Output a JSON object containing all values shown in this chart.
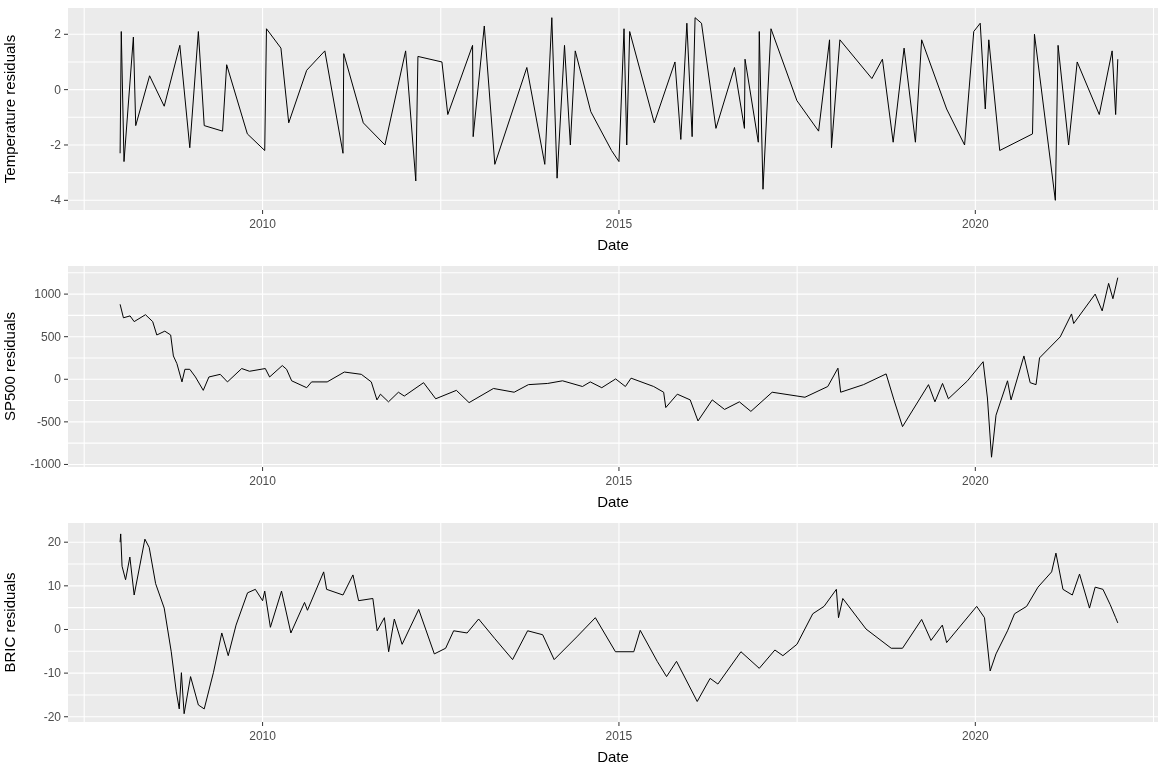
{
  "chart_data": [
    {
      "type": "line",
      "xlabel": "Date",
      "ylabel": "Temperature residuals",
      "color": "#000000",
      "grid": true,
      "xlim": [
        "2007-04-10",
        "2022-07-25"
      ],
      "xticks": [
        {
          "value": "2007-07-02",
          "label": null
        },
        {
          "value": "2010-01-01",
          "label": "2010"
        },
        {
          "value": "2012-07-02",
          "label": null
        },
        {
          "value": "2015-01-01",
          "label": "2015"
        },
        {
          "value": "2017-07-02",
          "label": null
        },
        {
          "value": "2020-01-01",
          "label": "2020"
        },
        {
          "value": "2022-07-02",
          "label": null
        }
      ],
      "ylim": [
        -4.35,
        2.95
      ],
      "yticks": [
        -4,
        {
          "value": -3,
          "label": null
        },
        -2,
        {
          "value": -1,
          "label": null
        },
        0,
        {
          "value": 1,
          "label": null
        },
        2
      ],
      "x": [
        "2008-01-02",
        "2008-01-08",
        "2008-01-22",
        "2008-03-10",
        "2008-03-22",
        "2008-06-01",
        "2008-08-15",
        "2008-11-03",
        "2008-12-24",
        "2009-02-06",
        "2009-03-08",
        "2009-06-10",
        "2009-07-01",
        "2009-10-15",
        "2010-01-12",
        "2010-01-21",
        "2010-04-05",
        "2010-05-15",
        "2010-08-15",
        "2010-11-16",
        "2011-02-17",
        "2011-02-21",
        "2011-06-01",
        "2011-09-20",
        "2012-01-04",
        "2012-02-25",
        "2012-03-07",
        "2012-07-08",
        "2012-08-07",
        "2012-12-12",
        "2012-12-15",
        "2013-02-10",
        "2013-04-05",
        "2013-09-16",
        "2013-12-17",
        "2014-01-22",
        "2014-02-18",
        "2014-03-28",
        "2014-04-27",
        "2014-05-22",
        "2014-08-10",
        "2014-11-24",
        "2015-01-01",
        "2015-01-27",
        "2015-02-10",
        "2015-02-25",
        "2015-07-01",
        "2015-10-15",
        "2015-11-14",
        "2015-12-15",
        "2016-01-11",
        "2016-01-26",
        "2016-02-28",
        "2016-05-12",
        "2016-08-15",
        "2016-10-05",
        "2016-10-08",
        "2016-12-15",
        "2016-12-20",
        "2017-01-08",
        "2017-02-18",
        "2017-07-01",
        "2017-10-20",
        "2017-12-15",
        "2017-12-25",
        "2018-02-06",
        "2018-07-20",
        "2018-09-12",
        "2018-11-06",
        "2019-01-01",
        "2019-02-28",
        "2019-04-01",
        "2019-08-07",
        "2019-11-07",
        "2019-12-24",
        "2020-01-26",
        "2020-02-21",
        "2020-03-10",
        "2020-05-05",
        "2020-10-20",
        "2020-10-30",
        "2021-02-14",
        "2021-02-28",
        "2021-04-23",
        "2021-06-06",
        "2021-09-27",
        "2021-12-02",
        "2021-12-20",
        "2021-12-31"
      ],
      "values": [
        -2.3,
        2.1,
        -2.6,
        1.9,
        -1.3,
        0.5,
        -0.6,
        1.6,
        -2.1,
        2.1,
        -1.3,
        -1.5,
        0.9,
        -1.6,
        -2.2,
        2.2,
        1.5,
        -1.2,
        0.7,
        1.4,
        -2.3,
        1.3,
        -1.2,
        -2.0,
        1.4,
        -3.3,
        1.2,
        1.0,
        -0.9,
        1.6,
        -1.7,
        2.3,
        -2.7,
        0.8,
        -2.7,
        2.6,
        -3.2,
        1.6,
        -2.0,
        1.4,
        -0.8,
        -2.2,
        -2.6,
        2.2,
        -2.0,
        2.1,
        -1.2,
        1.0,
        -1.8,
        2.4,
        -1.7,
        2.6,
        2.4,
        -1.4,
        0.8,
        -1.4,
        1.1,
        -1.9,
        2.1,
        -3.6,
        2.2,
        -0.4,
        -1.5,
        1.8,
        -2.1,
        1.8,
        0.4,
        1.1,
        -1.9,
        1.5,
        -1.9,
        1.8,
        -0.7,
        -2.0,
        2.1,
        2.4,
        -0.7,
        1.8,
        -2.2,
        -1.6,
        2.0,
        -4.0,
        1.6,
        -2.0,
        1.0,
        -0.9,
        1.4,
        -0.9,
        1.1
      ]
    },
    {
      "type": "line",
      "xlabel": "Date",
      "ylabel": "SP500 residuals",
      "color": "#000000",
      "grid": true,
      "xlim": [
        "2007-04-10",
        "2022-07-25"
      ],
      "xticks": [
        {
          "value": "2007-07-02",
          "label": null
        },
        {
          "value": "2010-01-01",
          "label": "2010"
        },
        {
          "value": "2012-07-02",
          "label": null
        },
        {
          "value": "2015-01-01",
          "label": "2015"
        },
        {
          "value": "2017-07-02",
          "label": null
        },
        {
          "value": "2020-01-01",
          "label": "2020"
        },
        {
          "value": "2022-07-02",
          "label": null
        }
      ],
      "ylim": [
        -1030,
        1330
      ],
      "yticks": [
        -1000,
        {
          "value": -750,
          "label": null
        },
        -500,
        {
          "value": -250,
          "label": null
        },
        0,
        {
          "value": 250,
          "label": null
        },
        500,
        {
          "value": 750,
          "label": null
        },
        1000,
        {
          "value": 1250,
          "label": null
        }
      ],
      "x": [
        "2008-01-02",
        "2008-01-19",
        "2008-02-22",
        "2008-03-14",
        "2008-05-11",
        "2008-06-17",
        "2008-07-08",
        "2008-08-18",
        "2008-09-17",
        "2008-10-01",
        "2008-10-19",
        "2008-11-14",
        "2008-11-29",
        "2008-12-24",
        "2009-01-22",
        "2009-03-03",
        "2009-04-01",
        "2009-05-29",
        "2009-07-05",
        "2009-09-16",
        "2009-10-26",
        "2010-01-15",
        "2010-02-06",
        "2010-04-12",
        "2010-05-04",
        "2010-05-30",
        "2010-08-15",
        "2010-09-09",
        "2010-11-28",
        "2011-02-24",
        "2011-05-22",
        "2011-07-12",
        "2011-08-10",
        "2011-08-28",
        "2011-10-08",
        "2011-11-28",
        "2011-12-28",
        "2012-04-05",
        "2012-06-06",
        "2012-09-20",
        "2012-11-24",
        "2013-03-29",
        "2013-07-13",
        "2013-09-24",
        "2014-01-01",
        "2014-03-18",
        "2014-06-28",
        "2014-08-07",
        "2014-10-05",
        "2014-12-15",
        "2015-02-03",
        "2015-03-04",
        "2015-06-28",
        "2015-08-18",
        "2015-08-29",
        "2015-10-27",
        "2016-01-01",
        "2016-02-10",
        "2016-04-23",
        "2016-06-25",
        "2016-09-09",
        "2016-11-07",
        "2017-02-24",
        "2017-08-11",
        "2017-12-06",
        "2018-01-27",
        "2018-02-10",
        "2018-06-07",
        "2018-10-01",
        "2018-11-10",
        "2018-12-24",
        "2019-05-06",
        "2019-06-08",
        "2019-07-17",
        "2019-08-16",
        "2019-11-22",
        "2020-02-10",
        "2020-03-03",
        "2020-03-24",
        "2020-04-16",
        "2020-06-14",
        "2020-07-02",
        "2020-09-06",
        "2020-10-08",
        "2020-11-07",
        "2020-11-25",
        "2021-03-11",
        "2021-05-08",
        "2021-05-19",
        "2021-09-06",
        "2021-10-12",
        "2021-11-14",
        "2021-12-06",
        "2021-12-31"
      ],
      "values": [
        880,
        722,
        744,
        677,
        758,
        677,
        520,
        565,
        520,
        274,
        184,
        -31,
        117,
        117,
        27,
        -130,
        27,
        58,
        -31,
        126,
        94,
        126,
        27,
        161,
        117,
        -18,
        -99,
        -31,
        -31,
        85,
        58,
        -31,
        -242,
        -175,
        -265,
        -152,
        -197,
        -40,
        -229,
        -130,
        -274,
        -108,
        -152,
        -63,
        -49,
        -18,
        -85,
        -31,
        -99,
        4,
        -85,
        13,
        -85,
        -152,
        -332,
        -175,
        -242,
        -489,
        -242,
        -354,
        -265,
        -377,
        -152,
        -211,
        -85,
        130,
        -152,
        -63,
        63,
        -242,
        -556,
        -63,
        -265,
        -49,
        -229,
        -18,
        206,
        -220,
        -915,
        -422,
        -18,
        -242,
        274,
        -40,
        -63,
        251,
        498,
        767,
        655,
        1000,
        803,
        1126,
        946,
        1193
      ]
    },
    {
      "type": "line",
      "xlabel": "Date",
      "ylabel": "BRIC residuals",
      "color": "#000000",
      "grid": true,
      "xlim": [
        "2007-04-10",
        "2022-07-25"
      ],
      "xticks": [
        {
          "value": "2007-07-02",
          "label": null
        },
        {
          "value": "2010-01-01",
          "label": "2010"
        },
        {
          "value": "2012-07-02",
          "label": null
        },
        {
          "value": "2015-01-01",
          "label": "2015"
        },
        {
          "value": "2017-07-02",
          "label": null
        },
        {
          "value": "2020-01-01",
          "label": "2020"
        },
        {
          "value": "2022-07-02",
          "label": null
        }
      ],
      "ylim": [
        -21.2,
        24.4
      ],
      "yticks": [
        -20,
        {
          "value": -15,
          "label": null
        },
        -10,
        {
          "value": -5,
          "label": null
        },
        0,
        {
          "value": 5,
          "label": null
        },
        10,
        {
          "value": 15,
          "label": null
        },
        20
      ],
      "x": [
        "2008-01-02",
        "2008-01-05",
        "2008-01-12",
        "2008-01-30",
        "2008-02-21",
        "2008-03-14",
        "2008-05-08",
        "2008-05-30",
        "2008-07-02",
        "2008-08-15",
        "2008-09-20",
        "2008-10-16",
        "2008-10-31",
        "2008-11-11",
        "2008-11-25",
        "2008-12-28",
        "2009-02-06",
        "2009-03-08",
        "2009-04-24",
        "2009-06-06",
        "2009-07-09",
        "2009-08-18",
        "2009-10-16",
        "2009-11-25",
        "2010-01-01",
        "2010-01-12",
        "2010-02-10",
        "2010-04-08",
        "2010-05-26",
        "2010-08-04",
        "2010-08-19",
        "2010-11-10",
        "2010-11-25",
        "2011-02-17",
        "2011-04-09",
        "2011-05-08",
        "2011-07-20",
        "2011-08-11",
        "2011-09-17",
        "2011-10-09",
        "2011-11-07",
        "2011-12-17",
        "2012-03-11",
        "2012-05-30",
        "2012-07-27",
        "2012-09-06",
        "2012-11-14",
        "2013-01-12",
        "2013-04-05",
        "2013-07-05",
        "2013-09-20",
        "2013-12-06",
        "2014-02-03",
        "2014-05-30",
        "2014-09-02",
        "2014-12-14",
        "2015-03-18",
        "2015-04-20",
        "2015-07-16",
        "2015-09-02",
        "2015-10-23",
        "2016-02-06",
        "2016-04-12",
        "2016-05-22",
        "2016-09-17",
        "2016-12-20",
        "2017-03-10",
        "2017-04-20",
        "2017-07-01",
        "2017-09-20",
        "2017-11-17",
        "2018-01-19",
        "2018-01-30",
        "2018-02-21",
        "2018-06-20",
        "2018-10-27",
        "2018-12-24",
        "2019-04-01",
        "2019-05-19",
        "2019-07-16",
        "2019-08-07",
        "2020-01-08",
        "2020-02-17",
        "2020-03-17",
        "2020-04-16",
        "2020-06-14",
        "2020-07-20",
        "2020-09-20",
        "2020-11-17",
        "2021-01-26",
        "2021-02-17",
        "2021-03-25",
        "2021-05-12",
        "2021-06-18",
        "2021-08-08",
        "2021-09-06",
        "2021-10-16",
        "2021-11-22",
        "2021-12-20",
        "2021-12-31"
      ],
      "values": [
        20,
        21.9,
        14.5,
        11.4,
        16.6,
        7.9,
        20.7,
        18.8,
        10.5,
        4.9,
        -5.1,
        -14.3,
        -18.2,
        -9.9,
        -19.3,
        -10.8,
        -17.3,
        -18.2,
        -9.9,
        -0.8,
        -6.0,
        1.0,
        8.4,
        9.2,
        6.6,
        8.8,
        0.5,
        8.8,
        -0.8,
        6.2,
        4.4,
        13.2,
        9.2,
        7.9,
        12.5,
        6.6,
        7.1,
        -0.3,
        2.7,
        -5.1,
        2.4,
        -3.4,
        4.6,
        -5.6,
        -4.3,
        -0.3,
        -0.8,
        2.4,
        -2.1,
        -6.9,
        -0.3,
        -1.2,
        -6.9,
        -1.7,
        2.7,
        -5.1,
        -5.1,
        -0.2,
        -7.3,
        -10.8,
        -7.3,
        -16.5,
        -11.2,
        -12.5,
        -5.1,
        -8.9,
        -4.7,
        -6.0,
        -3.4,
        3.6,
        5.3,
        9.2,
        2.7,
        7.1,
        0.1,
        -4.3,
        -4.3,
        2.3,
        -2.5,
        1.0,
        -3.0,
        5.3,
        2.7,
        -9.5,
        -5.6,
        -0.3,
        3.6,
        5.3,
        9.7,
        13.2,
        17.5,
        9.2,
        7.9,
        12.7,
        4.9,
        9.7,
        9.2,
        5.7,
        2.7,
        1.5
      ]
    }
  ]
}
